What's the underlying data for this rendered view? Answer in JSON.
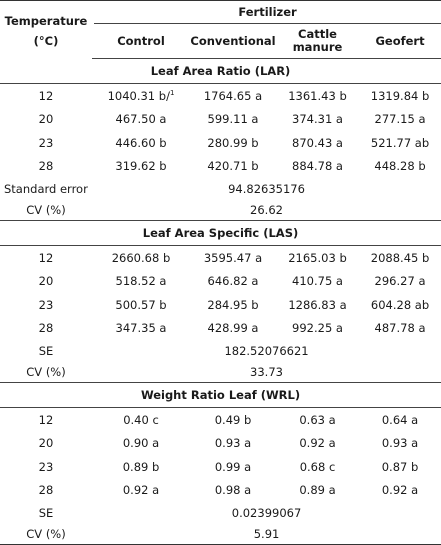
{
  "header": {
    "temp_label_line1": "Temperature",
    "temp_label_line2": "(°C)",
    "fertilizer_label": "Fertilizer",
    "columns": [
      "Control",
      "Conventional",
      "Cattle",
      "manure",
      "Geofert"
    ]
  },
  "sections": [
    {
      "title": "Leaf Area Ratio (LAR)",
      "rows": [
        {
          "temp": "12",
          "control": "1040.31 b/",
          "control_sup": "1",
          "conventional": "1764.65 a",
          "cattle": "1361.43 b",
          "geofert": "1319.84 b"
        },
        {
          "temp": "20",
          "control": "467.50 a",
          "conventional": "599.11 a",
          "cattle": "374.31 a",
          "geofert": "277.15 a"
        },
        {
          "temp": "23",
          "control": "446.60 b",
          "conventional": "280.99 b",
          "cattle": "870.43 a",
          "geofert": "521.77 ab"
        },
        {
          "temp": "28",
          "control": "319.62 b",
          "conventional": "420.71 b",
          "cattle": "884.78 a",
          "geofert": "448.28 b"
        }
      ],
      "stat1_label": "Standard error",
      "stat1_value": "94.82635176",
      "stat2_label": "CV (%)",
      "stat2_value": "26.62"
    },
    {
      "title": "Leaf Area Specific (LAS)",
      "rows": [
        {
          "temp": "12",
          "control": "2660.68 b",
          "conventional": "3595.47 a",
          "cattle": "2165.03 b",
          "geofert": "2088.45 b"
        },
        {
          "temp": "20",
          "control": "518.52 a",
          "conventional": "646.82 a",
          "cattle": "410.75 a",
          "geofert": "296.27 a"
        },
        {
          "temp": "23",
          "control": "500.57 b",
          "conventional": "284.95 b",
          "cattle": "1286.83 a",
          "geofert": "604.28 ab"
        },
        {
          "temp": "28",
          "control": "347.35 a",
          "conventional": "428.99 a",
          "cattle": "992.25 a",
          "geofert": "487.78 a"
        }
      ],
      "stat1_label": "SE",
      "stat1_value": "182.52076621",
      "stat2_label": "CV (%)",
      "stat2_value": "33.73"
    },
    {
      "title": "Weight Ratio Leaf (WRL)",
      "rows": [
        {
          "temp": "12",
          "control": "0.40 c",
          "conventional": "0.49 b",
          "cattle": "0.63 a",
          "geofert": "0.64 a"
        },
        {
          "temp": "20",
          "control": "0.90 a",
          "conventional": "0.93 a",
          "cattle": "0.92 a",
          "geofert": "0.93 a"
        },
        {
          "temp": "23",
          "control": "0.89 b",
          "conventional": "0.99 a",
          "cattle": "0.68 c",
          "geofert": "0.87 b"
        },
        {
          "temp": "28",
          "control": "0.92 a",
          "conventional": "0.98 a",
          "cattle": "0.89 a",
          "geofert": "0.92 a"
        }
      ],
      "stat1_label": "SE",
      "stat1_value": "0.02399067",
      "stat2_label": "CV (%)",
      "stat2_value": "5.91"
    }
  ]
}
